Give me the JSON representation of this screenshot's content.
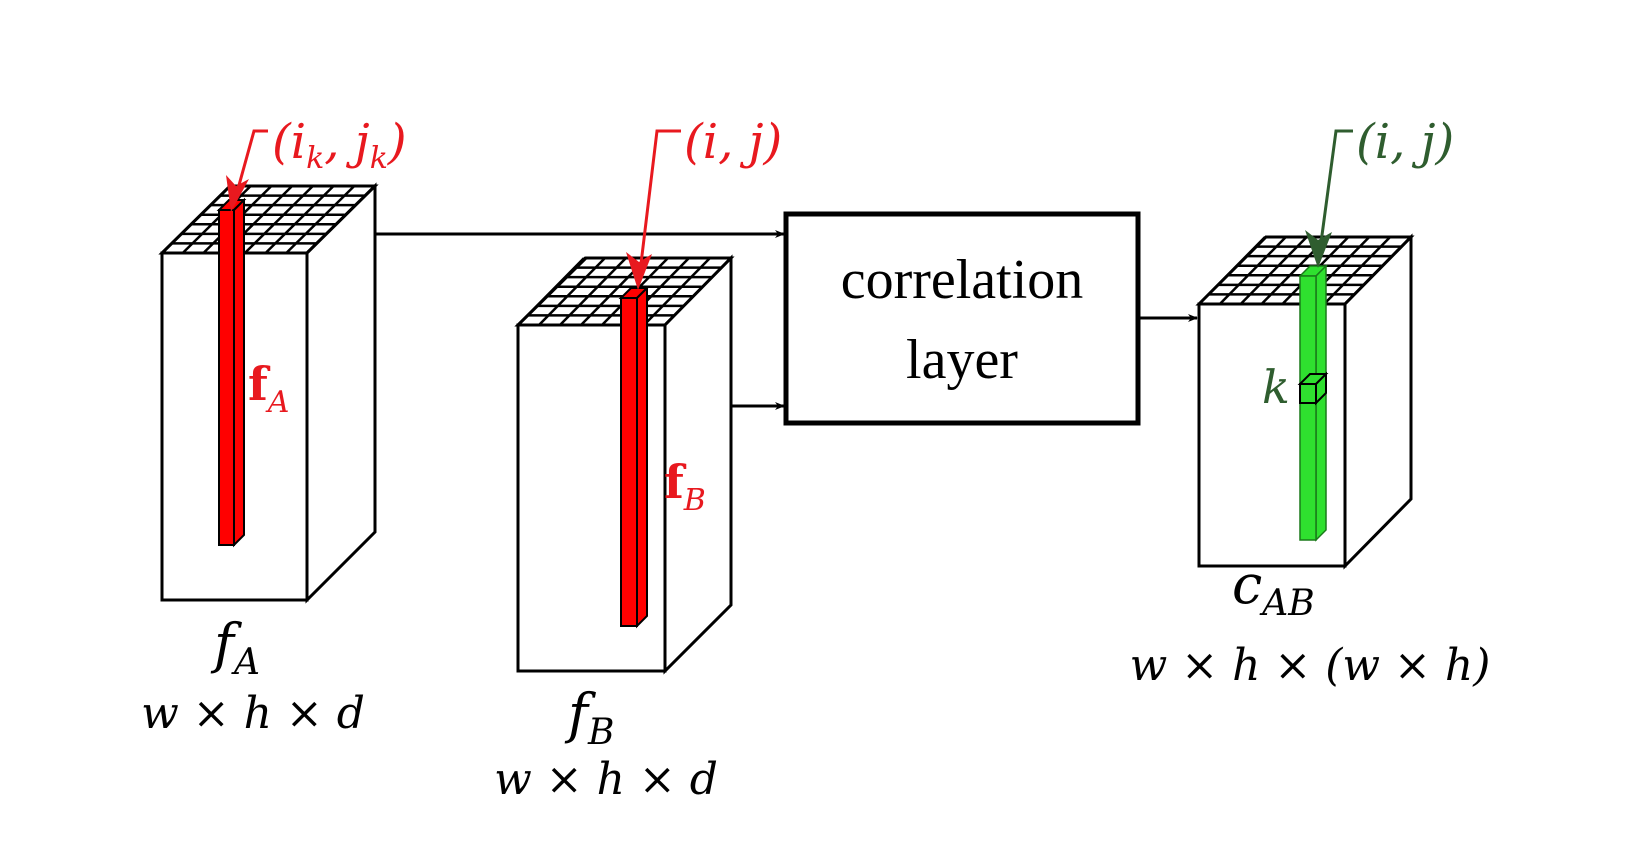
{
  "colors": {
    "outline": "#000000",
    "feature_red": "#ff0000",
    "label_red": "#e8191f",
    "corr_green": "#2fe02f",
    "label_green": "#2f5d2f"
  },
  "blocks": {
    "fA": {
      "pointer_label": "(i_k, j_k)",
      "column_label": "f_A",
      "name": "f_A",
      "dims": "w × h × d"
    },
    "fB": {
      "pointer_label": "(i, j)",
      "column_label": "f_B",
      "name": "f_B",
      "dims": "w × h × d"
    },
    "cAB": {
      "pointer_label": "(i, j)",
      "cell_label": "k",
      "name": "c_AB",
      "dims": "w × h × (w × h)"
    }
  },
  "correlation_box": {
    "line1": "correlation",
    "line2": "layer"
  }
}
